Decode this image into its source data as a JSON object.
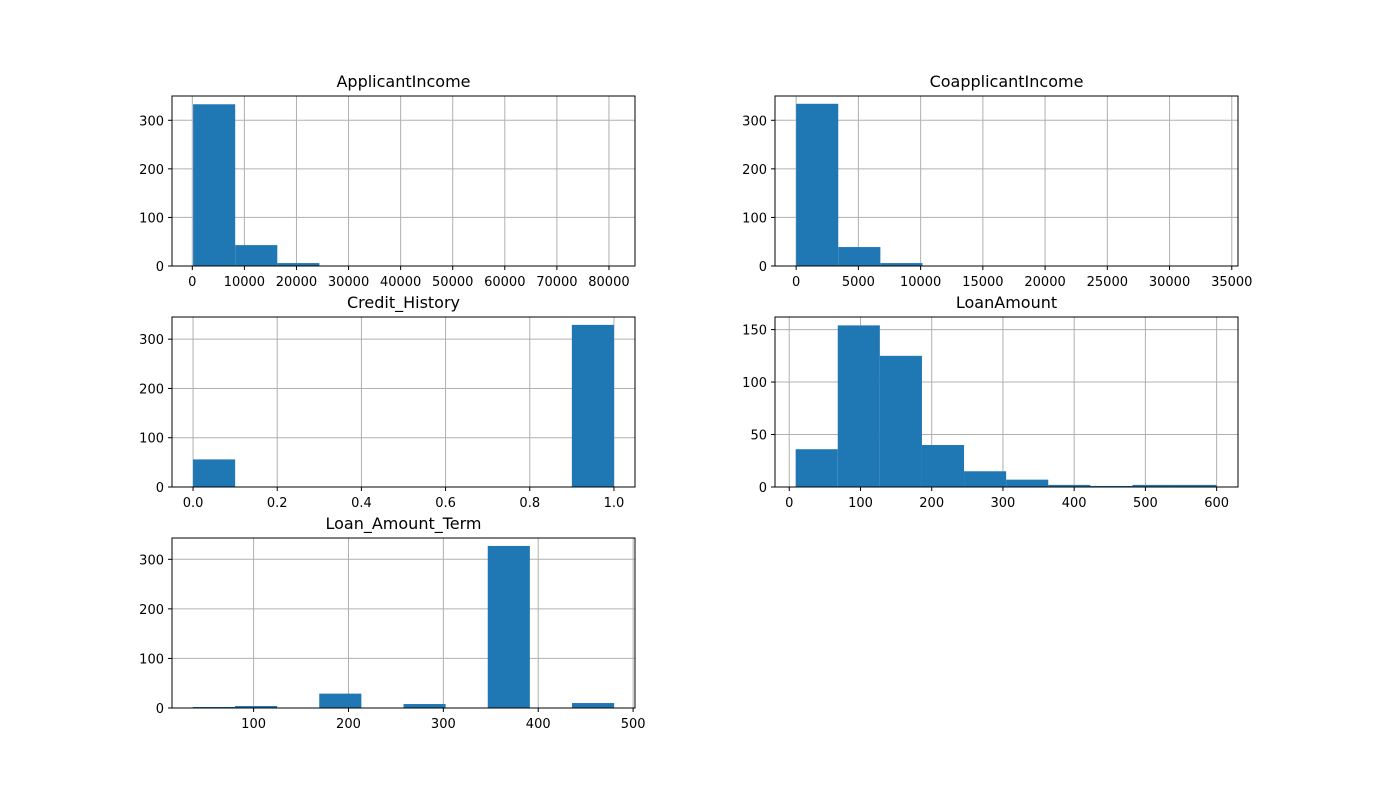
{
  "colors": {
    "bar": "#1f77b4",
    "grid": "#b0b0b0",
    "axis": "#000000"
  },
  "chart_data": [
    {
      "type": "bar",
      "title": "ApplicantIncome",
      "grid": true,
      "bin_edges": [
        150,
        8235,
        16320,
        24405,
        32490,
        40575,
        48660,
        56745,
        64830,
        72915,
        81000
      ],
      "values": [
        333,
        43,
        6,
        0,
        1,
        0,
        0,
        0,
        0,
        1
      ],
      "xlim": [
        -3900,
        85000
      ],
      "ylim": [
        0,
        350
      ],
      "xticks": [
        0,
        10000,
        20000,
        30000,
        40000,
        50000,
        60000,
        70000,
        80000
      ],
      "yticks": [
        0,
        100,
        200,
        300
      ]
    },
    {
      "type": "bar",
      "title": "CoapplicantIncome",
      "grid": true,
      "bin_edges": [
        0,
        3383,
        6766,
        10149,
        13532,
        16915,
        20298,
        23681,
        27064,
        30447,
        33830
      ],
      "values": [
        334,
        39,
        6,
        1,
        0,
        1,
        0,
        0,
        0,
        1
      ],
      "xlim": [
        -1700,
        35500
      ],
      "ylim": [
        0,
        350
      ],
      "xticks": [
        0,
        5000,
        10000,
        15000,
        20000,
        25000,
        30000,
        35000
      ],
      "yticks": [
        0,
        100,
        200,
        300
      ]
    },
    {
      "type": "bar",
      "title": "Credit_History",
      "grid": true,
      "bin_edges": [
        0,
        0.1,
        0.2,
        0.3,
        0.4,
        0.5,
        0.6,
        0.7,
        0.8,
        0.9,
        1.0
      ],
      "values": [
        56,
        0,
        0,
        0,
        0,
        0,
        0,
        0,
        0,
        329
      ],
      "xlim": [
        -0.05,
        1.05
      ],
      "ylim": [
        0,
        345
      ],
      "xticks": [
        "0.0",
        "0.2",
        "0.4",
        "0.6",
        "0.8",
        "1.0"
      ],
      "yticks": [
        0,
        100,
        200,
        300
      ]
    },
    {
      "type": "bar",
      "title": "LoanAmount",
      "grid": true,
      "bin_edges": [
        9,
        68.1,
        127.2,
        186.3,
        245.4,
        304.5,
        363.6,
        422.7,
        481.8,
        540.9,
        600
      ],
      "values": [
        36,
        154,
        125,
        40,
        15,
        7,
        2,
        1,
        2,
        2
      ],
      "xlim": [
        -20,
        630
      ],
      "ylim": [
        0,
        162
      ],
      "xticks": [
        0,
        100,
        200,
        300,
        400,
        500,
        600
      ],
      "yticks": [
        0,
        50,
        100,
        150
      ]
    },
    {
      "type": "bar",
      "title": "Loan_Amount_Term",
      "grid": true,
      "bin_edges": [
        36,
        80.4,
        124.8,
        169.2,
        213.6,
        258,
        302.4,
        346.8,
        391.2,
        435.6,
        480
      ],
      "values": [
        2,
        4,
        0,
        29,
        0,
        8,
        0,
        327,
        0,
        10
      ],
      "xlim": [
        14,
        502
      ],
      "ylim": [
        0,
        343
      ],
      "xticks": [
        100,
        200,
        300,
        400,
        500
      ],
      "yticks": [
        0,
        100,
        200,
        300
      ]
    }
  ]
}
